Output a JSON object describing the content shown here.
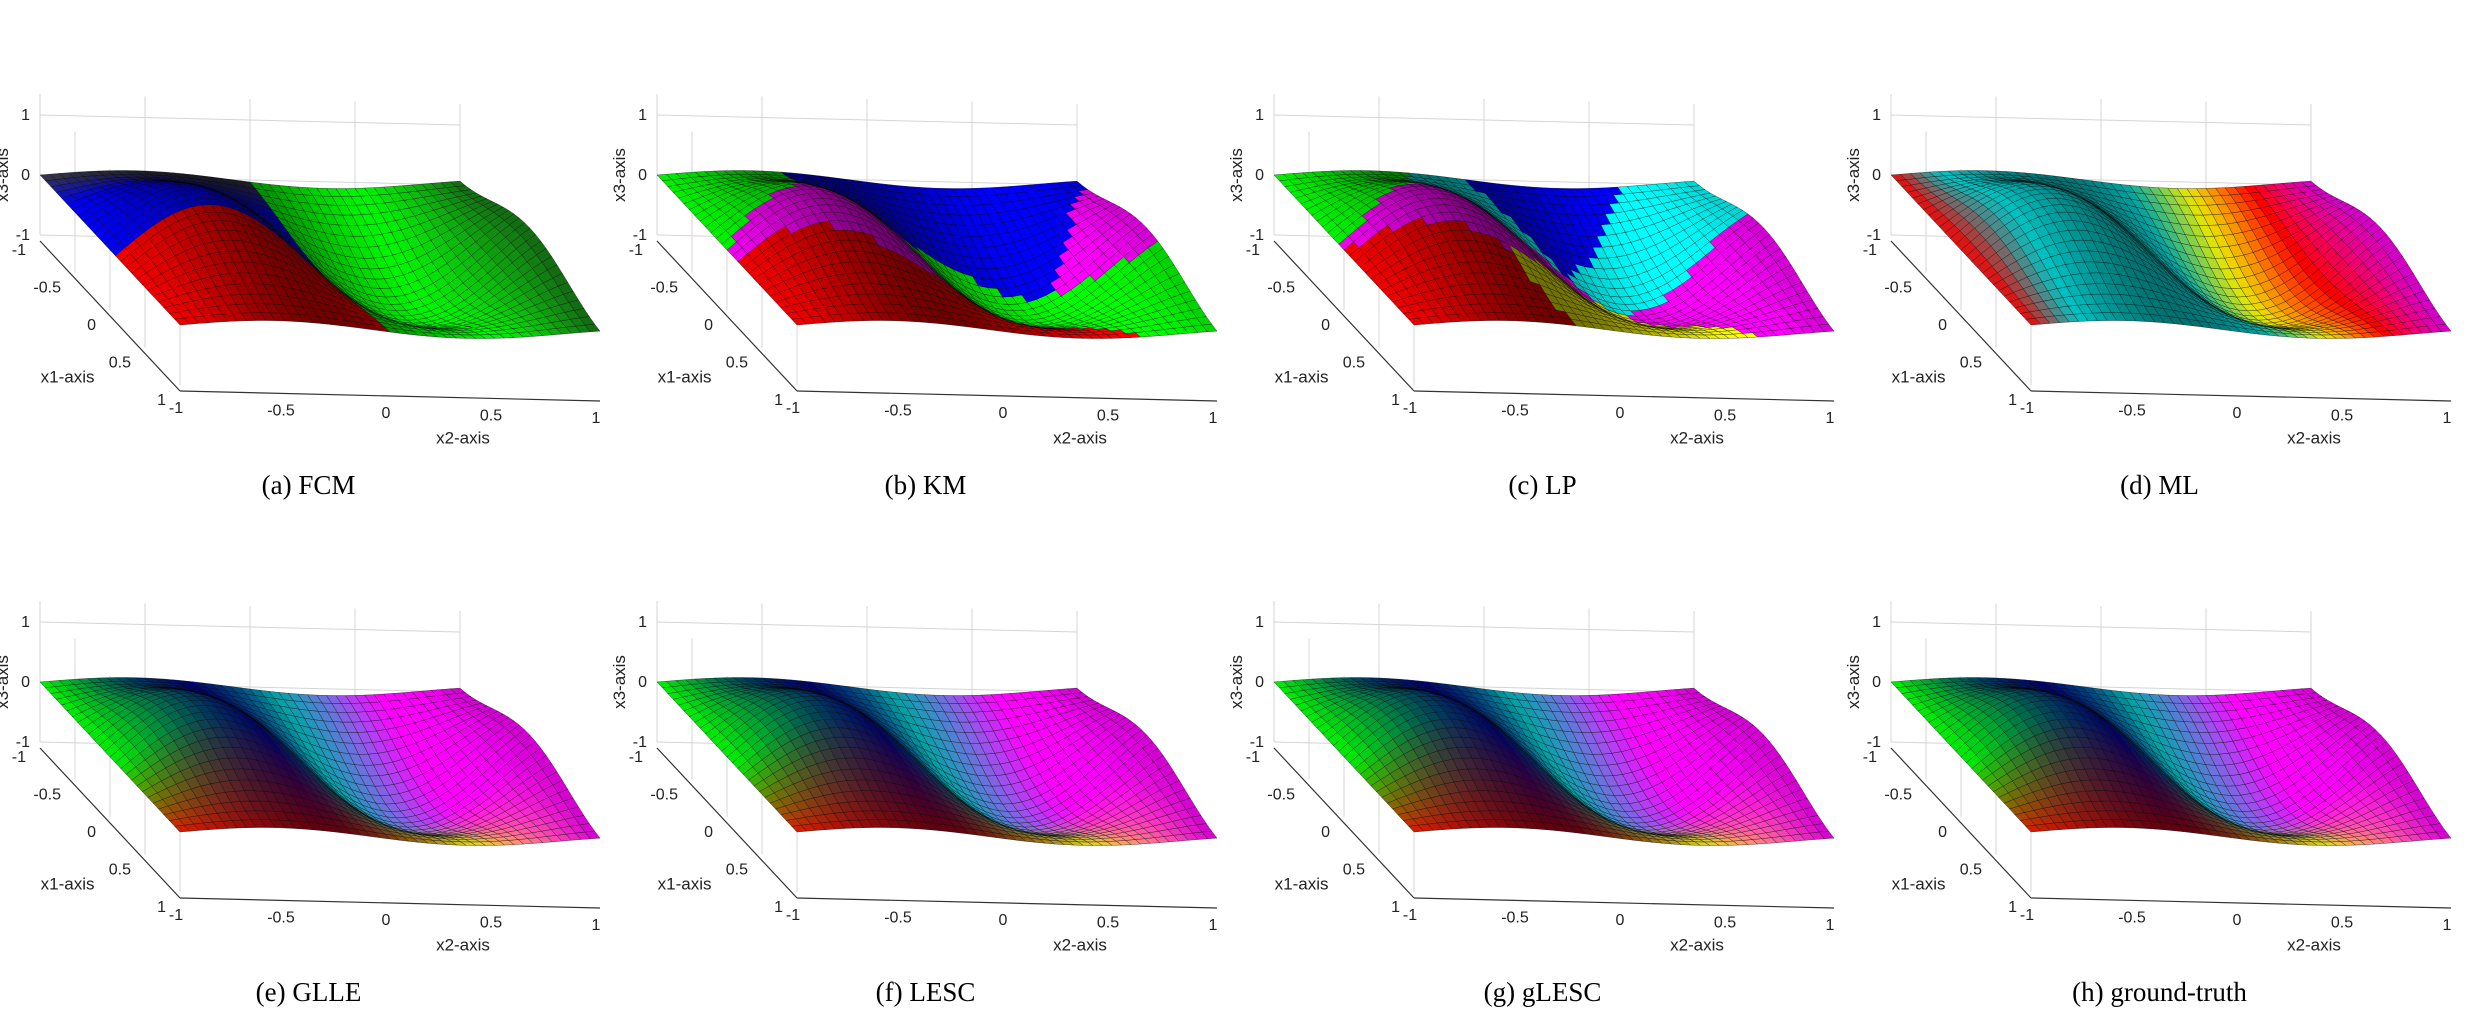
{
  "figure": {
    "panels": [
      {
        "caption": "(a) FCM",
        "coloring": "fcm"
      },
      {
        "caption": "(b) KM",
        "coloring": "km"
      },
      {
        "caption": "(c) LP",
        "coloring": "lp"
      },
      {
        "caption": "(d) ML",
        "coloring": "ml"
      },
      {
        "caption": "(e) GLLE",
        "coloring": "gradient"
      },
      {
        "caption": "(f) LESC",
        "coloring": "gradient"
      },
      {
        "caption": "(g) gLESC",
        "coloring": "gradient"
      },
      {
        "caption": "(h) ground-truth",
        "coloring": "gradient"
      }
    ]
  },
  "chart_data": {
    "type": "surface3d",
    "panel_count": 8,
    "xlabel": "x1-axis",
    "ylabel": "x2-axis",
    "zlabel": "x3-axis",
    "xlim": [
      -1,
      1
    ],
    "ylim": [
      -1,
      1
    ],
    "zlim": [
      -1,
      1
    ],
    "x1_ticks": [
      "-1",
      "-0.5",
      "0",
      "0.5",
      "1"
    ],
    "x2_ticks": [
      "-1",
      "-0.5",
      "0",
      "0.5",
      "1"
    ],
    "x3_ticks": [
      "1",
      "0",
      "-1"
    ],
    "grid": true,
    "surface_colors": {
      "red": "#ff0000",
      "green": "#00ff00",
      "blue": "#0000ff",
      "cyan": "#00ffff",
      "magenta": "#ff00ff",
      "yellow": "#ffff00"
    },
    "mesh_color": "#000000"
  }
}
